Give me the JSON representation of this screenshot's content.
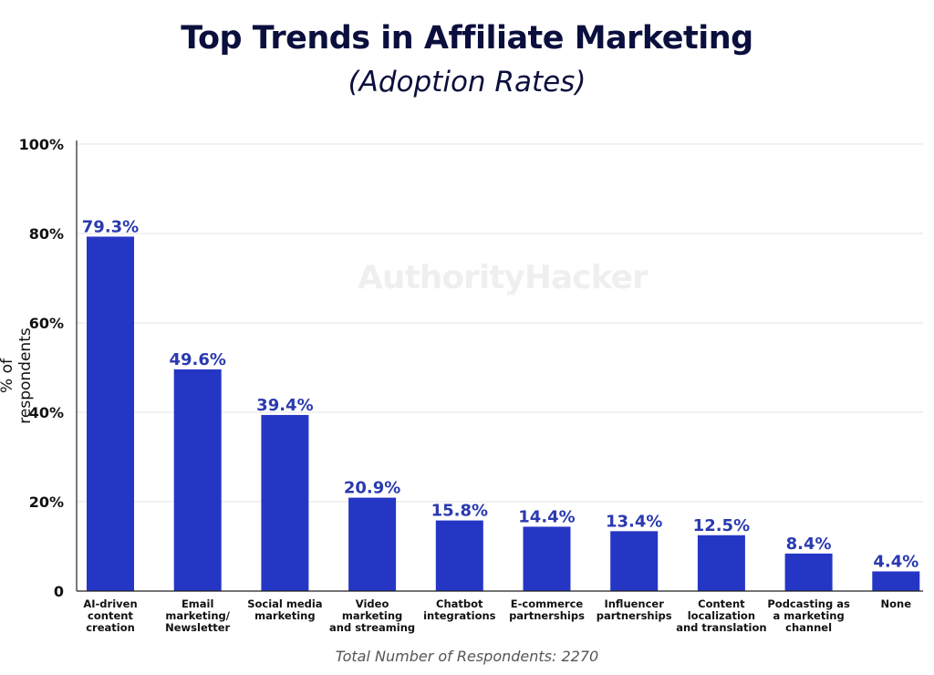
{
  "chart_data": {
    "type": "bar",
    "title": "Top Trends in Affiliate Marketing",
    "subtitle": "(Adoption Rates)",
    "ylabel": "% of respondents",
    "xlabel": "",
    "ylim": [
      0,
      100
    ],
    "yticks": [
      "0",
      "20%",
      "40%",
      "60%",
      "80%",
      "100%"
    ],
    "grid": true,
    "categories": [
      "AI-driven\ncontent\ncreation",
      "Email\nmarketing/\nNewsletter",
      "Social media\nmarketing",
      "Video\nmarketing\nand streaming",
      "Chatbot\nintegrations",
      "E-commerce\npartnerships",
      "Influencer\npartnerships",
      "Content\nlocalization\nand translation",
      "Podcasting as\na marketing\nchannel",
      "None"
    ],
    "values": [
      79.3,
      49.6,
      39.4,
      20.9,
      15.8,
      14.4,
      13.4,
      12.5,
      8.4,
      4.4
    ],
    "data_labels": [
      "79.3%",
      "49.6%",
      "39.4%",
      "20.9%",
      "15.8%",
      "14.4%",
      "13.4%",
      "12.5%",
      "8.4%",
      "4.4%"
    ],
    "footnote": "Total Number of Respondents: 2270",
    "watermark": "AuthorityHacker",
    "colors": {
      "bar": "#2536c4",
      "data_label": "#2a3aaf",
      "title": "#0b0f3d",
      "grid": "#e3e3e3"
    }
  }
}
